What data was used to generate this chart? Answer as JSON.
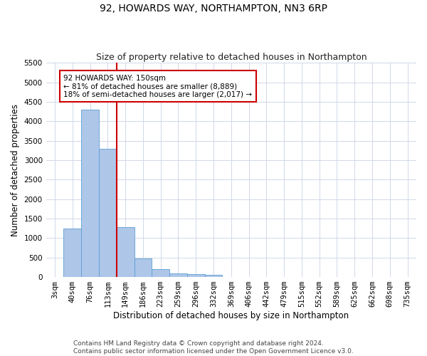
{
  "title": "92, HOWARDS WAY, NORTHAMPTON, NN3 6RP",
  "subtitle": "Size of property relative to detached houses in Northampton",
  "xlabel": "Distribution of detached houses by size in Northampton",
  "ylabel": "Number of detached properties",
  "categories": [
    "3sqm",
    "40sqm",
    "76sqm",
    "113sqm",
    "149sqm",
    "186sqm",
    "223sqm",
    "259sqm",
    "296sqm",
    "332sqm",
    "369sqm",
    "406sqm",
    "442sqm",
    "479sqm",
    "515sqm",
    "552sqm",
    "589sqm",
    "625sqm",
    "662sqm",
    "698sqm",
    "735sqm"
  ],
  "values": [
    0,
    1250,
    4300,
    3300,
    1280,
    480,
    200,
    100,
    70,
    60,
    0,
    0,
    0,
    0,
    0,
    0,
    0,
    0,
    0,
    0,
    0
  ],
  "bar_color": "#aec6e8",
  "bar_edge_color": "#5a9fd4",
  "vline_color": "#cc0000",
  "vline_index": 3.5,
  "annotation_text": "92 HOWARDS WAY: 150sqm\n← 81% of detached houses are smaller (8,889)\n18% of semi-detached houses are larger (2,017) →",
  "annotation_box_color": "#ffffff",
  "annotation_box_edge": "#cc0000",
  "ylim": [
    0,
    5500
  ],
  "yticks": [
    0,
    500,
    1000,
    1500,
    2000,
    2500,
    3000,
    3500,
    4000,
    4500,
    5000,
    5500
  ],
  "footer": "Contains HM Land Registry data © Crown copyright and database right 2024.\nContains public sector information licensed under the Open Government Licence v3.0.",
  "bg_color": "#ffffff",
  "grid_color": "#d0d8e8",
  "title_fontsize": 10,
  "subtitle_fontsize": 9,
  "axis_label_fontsize": 8.5,
  "tick_fontsize": 7.5,
  "footer_fontsize": 6.5
}
